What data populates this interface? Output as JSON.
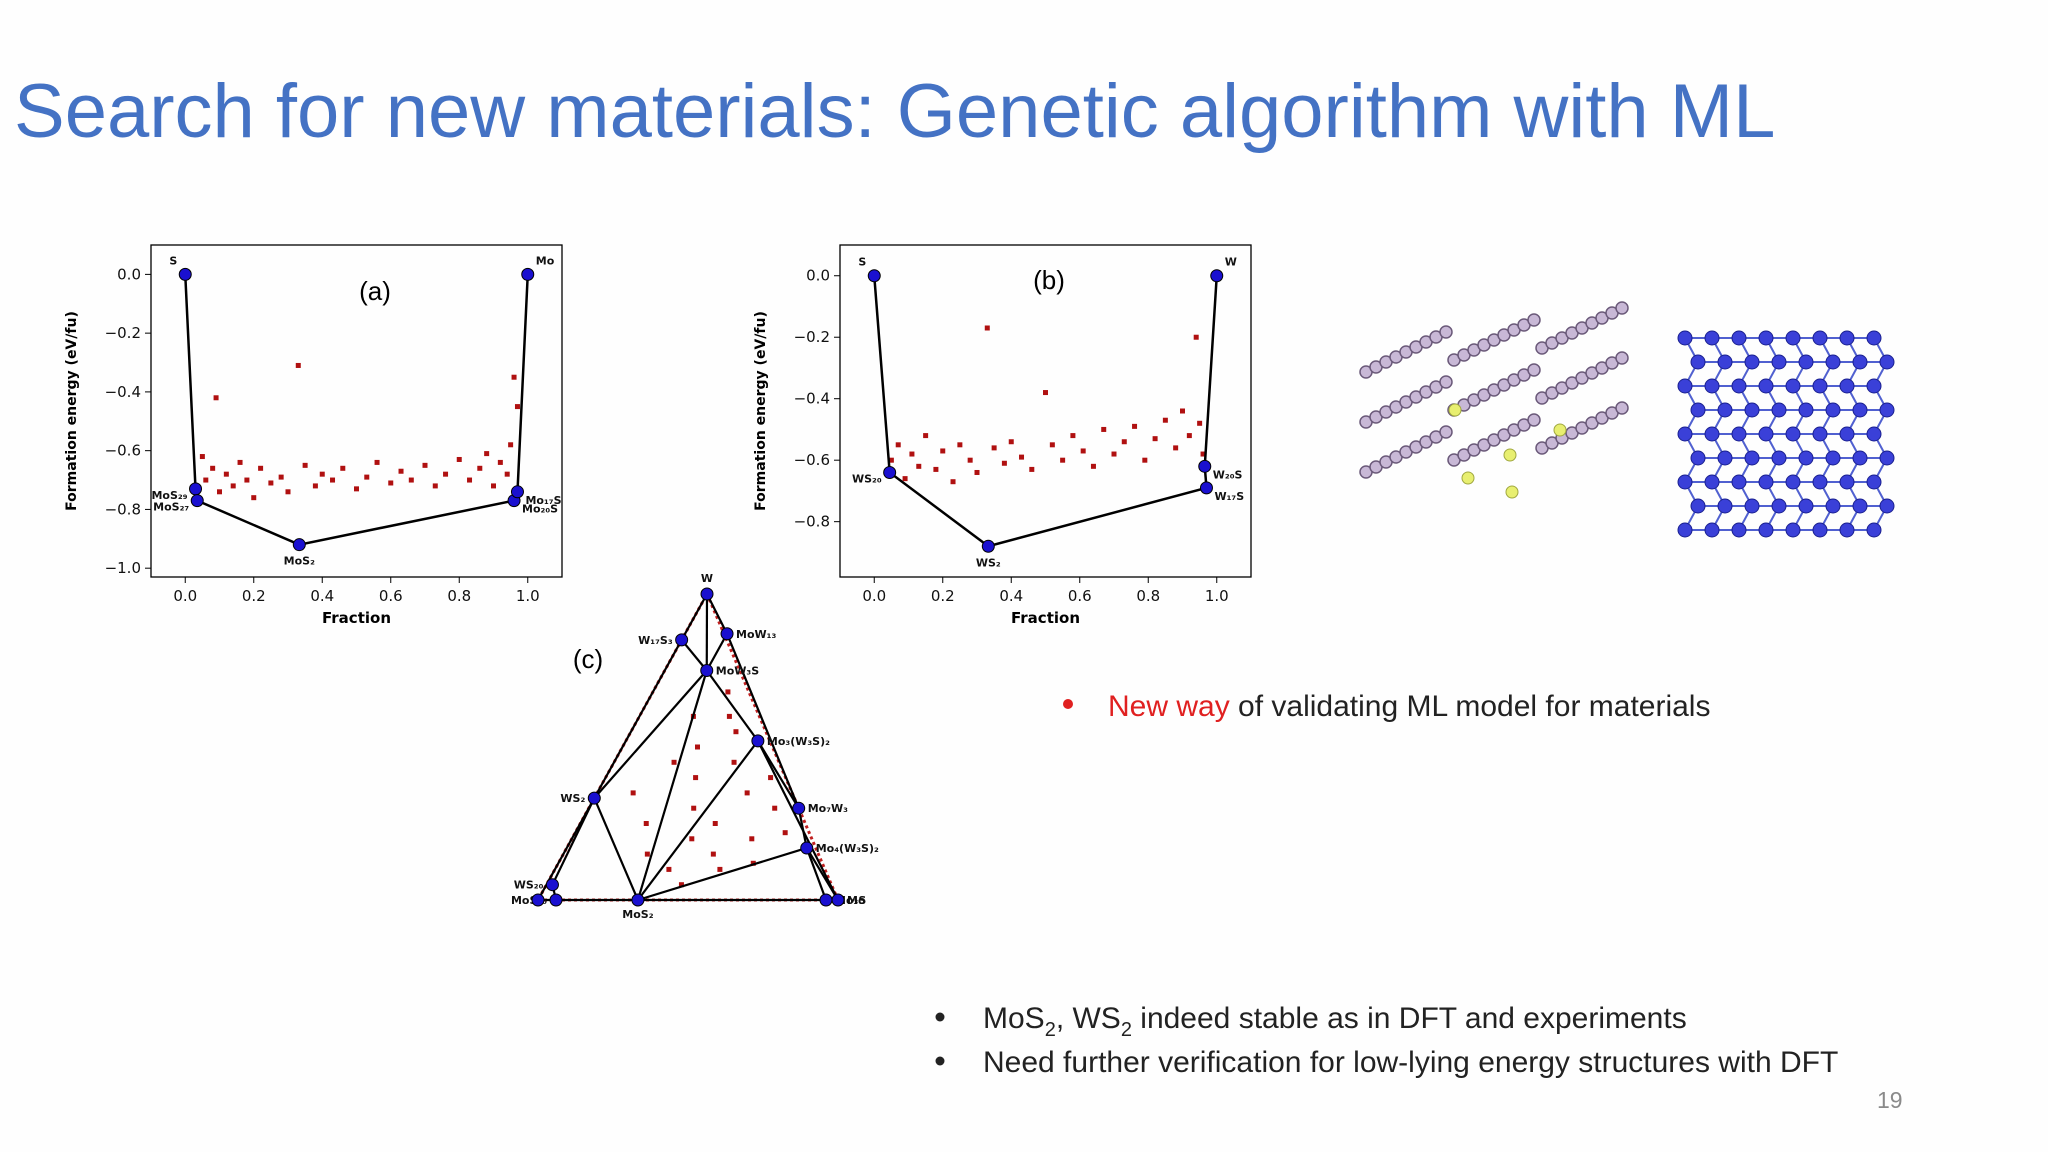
{
  "title": "Search for new materials: Genetic algorithm with ML",
  "chart_data": [
    {
      "type": "scatter",
      "panel_label": "(a)",
      "xlabel": "Fraction",
      "ylabel": "Formation energy (eV/fu)",
      "xlim": [
        -0.1,
        1.1
      ],
      "ylim": [
        -1.03,
        0.1
      ],
      "xticks": [
        {
          "value": 0,
          "label": "0.0"
        },
        0.2,
        0.4,
        0.6,
        0.8,
        {
          "value": 1,
          "label": "1.0"
        }
      ],
      "yticks": [
        {
          "value": 0,
          "label": "0.0"
        },
        {
          "value": -0.2,
          "label": "−0.2"
        },
        {
          "value": -0.4,
          "label": "−0.4"
        },
        {
          "value": -0.6,
          "label": "−0.6"
        },
        {
          "value": -0.8,
          "label": "−0.8"
        },
        {
          "value": -1,
          "label": "−1.0"
        }
      ],
      "points": {
        "color": "#b01010",
        "x": [
          0.05,
          0.06,
          0.08,
          0.09,
          0.1,
          0.12,
          0.14,
          0.16,
          0.18,
          0.2,
          0.22,
          0.25,
          0.28,
          0.3,
          0.33,
          0.35,
          0.38,
          0.4,
          0.43,
          0.46,
          0.5,
          0.53,
          0.56,
          0.6,
          0.63,
          0.66,
          0.7,
          0.73,
          0.76,
          0.8,
          0.83,
          0.86,
          0.88,
          0.9,
          0.92,
          0.94,
          0.95,
          0.96,
          0.97
        ],
        "values": [
          -0.62,
          -0.7,
          -0.66,
          -0.42,
          -0.74,
          -0.68,
          -0.72,
          -0.64,
          -0.7,
          -0.76,
          -0.66,
          -0.71,
          -0.69,
          -0.74,
          -0.31,
          -0.65,
          -0.72,
          -0.68,
          -0.7,
          -0.66,
          -0.73,
          -0.69,
          -0.64,
          -0.71,
          -0.67,
          -0.7,
          -0.65,
          -0.72,
          -0.68,
          -0.63,
          -0.7,
          -0.66,
          -0.61,
          -0.72,
          -0.64,
          -0.68,
          -0.58,
          -0.35,
          -0.45
        ]
      },
      "hull": {
        "color": "#1a10d0",
        "line_color": "#000000",
        "x": [
          0,
          0.03,
          0.035,
          0.333,
          0.96,
          0.97,
          1
        ],
        "values": [
          0,
          -0.73,
          -0.77,
          -0.92,
          -0.77,
          -0.74,
          0
        ],
        "labels": [
          "S",
          "MoS₂₉",
          "MoS₂₇",
          "MoS₂",
          "Mo₂₀S",
          "Mo₁₇S",
          "Mo"
        ]
      }
    },
    {
      "type": "scatter",
      "panel_label": "(b)",
      "xlabel": "Fraction",
      "ylabel": "Formation energy (eV/fu)",
      "xlim": [
        -0.1,
        1.1
      ],
      "ylim": [
        -0.98,
        0.1
      ],
      "xticks": [
        {
          "value": 0,
          "label": "0.0"
        },
        0.2,
        0.4,
        0.6,
        0.8,
        {
          "value": 1,
          "label": "1.0"
        }
      ],
      "yticks": [
        {
          "value": 0,
          "label": "0.0"
        },
        {
          "value": -0.2,
          "label": "−0.2"
        },
        {
          "value": -0.4,
          "label": "−0.4"
        },
        {
          "value": -0.6,
          "label": "−0.6"
        },
        {
          "value": -0.8,
          "label": "−0.8"
        }
      ],
      "points": {
        "color": "#b01010",
        "x": [
          0.05,
          0.07,
          0.09,
          0.11,
          0.13,
          0.15,
          0.18,
          0.2,
          0.23,
          0.25,
          0.28,
          0.3,
          0.33,
          0.35,
          0.38,
          0.4,
          0.43,
          0.46,
          0.5,
          0.52,
          0.55,
          0.58,
          0.61,
          0.64,
          0.67,
          0.7,
          0.73,
          0.76,
          0.79,
          0.82,
          0.85,
          0.88,
          0.9,
          0.92,
          0.94,
          0.95,
          0.96
        ],
        "values": [
          -0.6,
          -0.55,
          -0.66,
          -0.58,
          -0.62,
          -0.52,
          -0.63,
          -0.57,
          -0.67,
          -0.55,
          -0.6,
          -0.64,
          -0.17,
          -0.56,
          -0.61,
          -0.54,
          -0.59,
          -0.63,
          -0.38,
          -0.55,
          -0.6,
          -0.52,
          -0.57,
          -0.62,
          -0.5,
          -0.58,
          -0.54,
          -0.49,
          -0.6,
          -0.53,
          -0.47,
          -0.56,
          -0.44,
          -0.52,
          -0.2,
          -0.48,
          -0.58
        ]
      },
      "hull": {
        "color": "#1a10d0",
        "line_color": "#000000",
        "x": [
          0,
          0.045,
          0.333,
          0.97,
          0.965,
          1
        ],
        "values": [
          0,
          -0.64,
          -0.88,
          -0.69,
          -0.62,
          0
        ],
        "labels": [
          "S",
          "WS₂₀",
          "WS₂",
          "W₁₇S",
          "W₂₀S",
          "W"
        ]
      }
    },
    {
      "type": "ternary",
      "panel_label": "(c)",
      "points": {
        "color": "#b01010",
        "mo": [
          0.3,
          0.35,
          0.4,
          0.45,
          0.25,
          0.3,
          0.2,
          0.5,
          0.55,
          0.6,
          0.35,
          0.4,
          0.5,
          0.28,
          0.22,
          0.62,
          0.7,
          0.18,
          0.12,
          0.45,
          0.38,
          0.25,
          0.55,
          0.65
        ],
        "w": [
          0.4,
          0.3,
          0.2,
          0.25,
          0.5,
          0.6,
          0.45,
          0.15,
          0.1,
          0.2,
          0.55,
          0.45,
          0.35,
          0.15,
          0.25,
          0.3,
          0.22,
          0.6,
          0.35,
          0.05,
          0.1,
          0.68,
          0.4,
          0.12
        ]
      },
      "hull": {
        "color": "#1a10d0",
        "line_color": "#000000",
        "mo": [
          0,
          0,
          0.14,
          0.14,
          0.44,
          0.7,
          0.8,
          0.96,
          1,
          0.333,
          0,
          0.02,
          0.06,
          0
        ],
        "w": [
          1,
          0.85,
          0.87,
          0.75,
          0.52,
          0.3,
          0.17,
          0,
          0,
          0,
          0.333,
          0.05,
          0,
          0
        ],
        "labels": [
          "W",
          "W₁₇S₃",
          "MoW₁₃",
          "MoW₃S",
          "Mo₃(W₃S)₂",
          "Mo₇W₃",
          "Mo₄(W₃S)₂",
          "Mo₃S",
          "Mo",
          "MoS₂",
          "WS₂",
          "WS₂₀",
          "MoS₁₀",
          null
        ]
      },
      "tie_lines": [
        [
          0,
          1
        ],
        [
          0,
          2
        ],
        [
          0,
          3
        ],
        [
          1,
          3
        ],
        [
          2,
          3
        ],
        [
          2,
          5
        ],
        [
          3,
          4
        ],
        [
          4,
          5
        ],
        [
          3,
          9
        ],
        [
          3,
          10
        ],
        [
          10,
          9
        ],
        [
          10,
          13
        ],
        [
          4,
          9
        ],
        [
          4,
          8
        ],
        [
          9,
          8
        ],
        [
          10,
          11
        ],
        [
          11,
          12
        ],
        [
          12,
          9
        ],
        [
          5,
          6
        ],
        [
          6,
          8
        ],
        [
          9,
          6
        ],
        [
          1,
          10
        ],
        [
          13,
          12
        ],
        [
          7,
          8
        ],
        [
          6,
          7
        ]
      ]
    }
  ],
  "bullet_main": {
    "highlight": "New way",
    "text": " of validating ML model for materials"
  },
  "bullets": [
    [
      {
        "text": "MoS"
      },
      {
        "sub": "2"
      },
      {
        "text": ", WS"
      },
      {
        "sub": "2"
      },
      {
        "text": " indeed stable as in DFT and experiments"
      }
    ],
    [
      {
        "text": "Need further verification for low-lying energy structures with DFT"
      }
    ]
  ],
  "page_number": "19"
}
